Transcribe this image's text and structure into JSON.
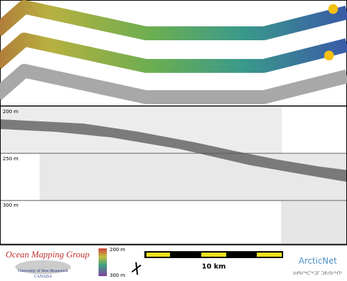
{
  "profile": {
    "depth_labels": [
      "200 m",
      "250 m",
      "300 m"
    ]
  },
  "footer": {
    "logo_title": "Ocean Mapping Group",
    "university": "University of New Brunswick",
    "country": "CANADA",
    "colorbar_labels": [
      "200 m",
      "300 m"
    ],
    "scale_label": "10 km",
    "partner": "ArcticNet",
    "partner_syllabics": "ᐅᑭᐅᖅᑕᖅᑐᒥ ᑐᑭᓯᐅᖅᑏᑦ"
  }
}
